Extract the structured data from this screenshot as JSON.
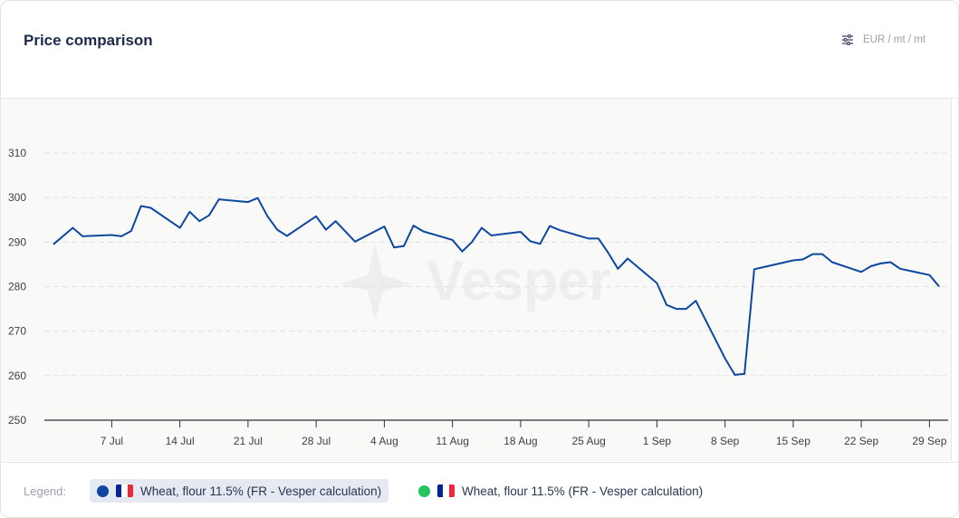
{
  "header": {
    "title": "Price comparison",
    "unit": "EUR / mt / mt",
    "unit_icon": "sliders-icon"
  },
  "watermark": "Vesper",
  "legend": {
    "label": "Legend:",
    "items": [
      {
        "label": "Wheat, flour 11.5% (FR - Vesper calculation)",
        "color": "#0d47a1",
        "flag": "france-flag",
        "active": true
      },
      {
        "label": "Wheat, flour 11.5% (FR - Vesper calculation)",
        "color": "#22c55e",
        "flag": "france-flag",
        "active": false
      }
    ]
  },
  "chart_data": {
    "type": "line",
    "title": "",
    "xlabel": "",
    "ylabel": "",
    "ylim": [
      250,
      310
    ],
    "yticks": [
      250,
      260,
      270,
      280,
      290,
      300,
      310
    ],
    "xticks": [
      {
        "date": "07-07",
        "label": "7 Jul"
      },
      {
        "date": "07-14",
        "label": "14 Jul"
      },
      {
        "date": "07-21",
        "label": "21 Jul"
      },
      {
        "date": "07-28",
        "label": "28 Jul"
      },
      {
        "date": "08-04",
        "label": "4 Aug"
      },
      {
        "date": "08-11",
        "label": "11 Aug"
      },
      {
        "date": "08-18",
        "label": "18 Aug"
      },
      {
        "date": "08-25",
        "label": "25 Aug"
      },
      {
        "date": "09-01",
        "label": "1 Sep"
      },
      {
        "date": "09-08",
        "label": "8 Sep"
      },
      {
        "date": "09-15",
        "label": "15 Sep"
      },
      {
        "date": "09-22",
        "label": "22 Sep"
      },
      {
        "date": "09-29",
        "label": "29 Sep"
      }
    ],
    "grid": "horizontal-dashed",
    "legend_position": "bottom",
    "series": [
      {
        "name": "Wheat, flour 11.5% (FR - Vesper calculation)",
        "color": "#0d47a1",
        "x": [
          "07-01",
          "07-03",
          "07-04",
          "07-07",
          "07-08",
          "07-09",
          "07-10",
          "07-11",
          "07-14",
          "07-15",
          "07-16",
          "07-17",
          "07-18",
          "07-21",
          "07-22",
          "07-23",
          "07-24",
          "07-25",
          "07-28",
          "07-29",
          "07-30",
          "08-01",
          "08-04",
          "08-05",
          "08-06",
          "08-07",
          "08-08",
          "08-11",
          "08-12",
          "08-13",
          "08-14",
          "08-15",
          "08-18",
          "08-19",
          "08-20",
          "08-21",
          "08-22",
          "08-25",
          "08-26",
          "08-27",
          "08-28",
          "08-29",
          "09-01",
          "09-02",
          "09-03",
          "09-04",
          "09-05",
          "09-08",
          "09-09",
          "09-10",
          "09-11",
          "09-12",
          "09-15",
          "09-16",
          "09-17",
          "09-18",
          "09-19",
          "09-22",
          "09-23",
          "09-24",
          "09-25",
          "09-26",
          "09-29",
          "09-30"
        ],
        "values": [
          289.5,
          293.2,
          291.3,
          291.6,
          291.3,
          292.5,
          298.1,
          297.7,
          293.2,
          296.8,
          294.7,
          296.0,
          299.6,
          299.0,
          299.9,
          295.8,
          292.8,
          291.4,
          295.8,
          292.8,
          294.7,
          290.1,
          293.5,
          288.8,
          289.1,
          293.7,
          292.4,
          290.5,
          287.9,
          290.0,
          293.2,
          291.5,
          292.3,
          290.2,
          289.6,
          293.6,
          292.7,
          290.8,
          290.8,
          287.6,
          284.0,
          286.3,
          280.8,
          275.9,
          275.0,
          275.0,
          276.8,
          263.9,
          260.2,
          260.4,
          283.9,
          284.4,
          285.9,
          286.1,
          287.3,
          287.3,
          285.5,
          283.3,
          284.6,
          285.2,
          285.5,
          284.0,
          282.6,
          280.0
        ]
      },
      {
        "name": "Wheat, flour 11.5% (FR - Vesper calculation)",
        "color": "#22c55e",
        "x": [],
        "values": []
      }
    ]
  }
}
